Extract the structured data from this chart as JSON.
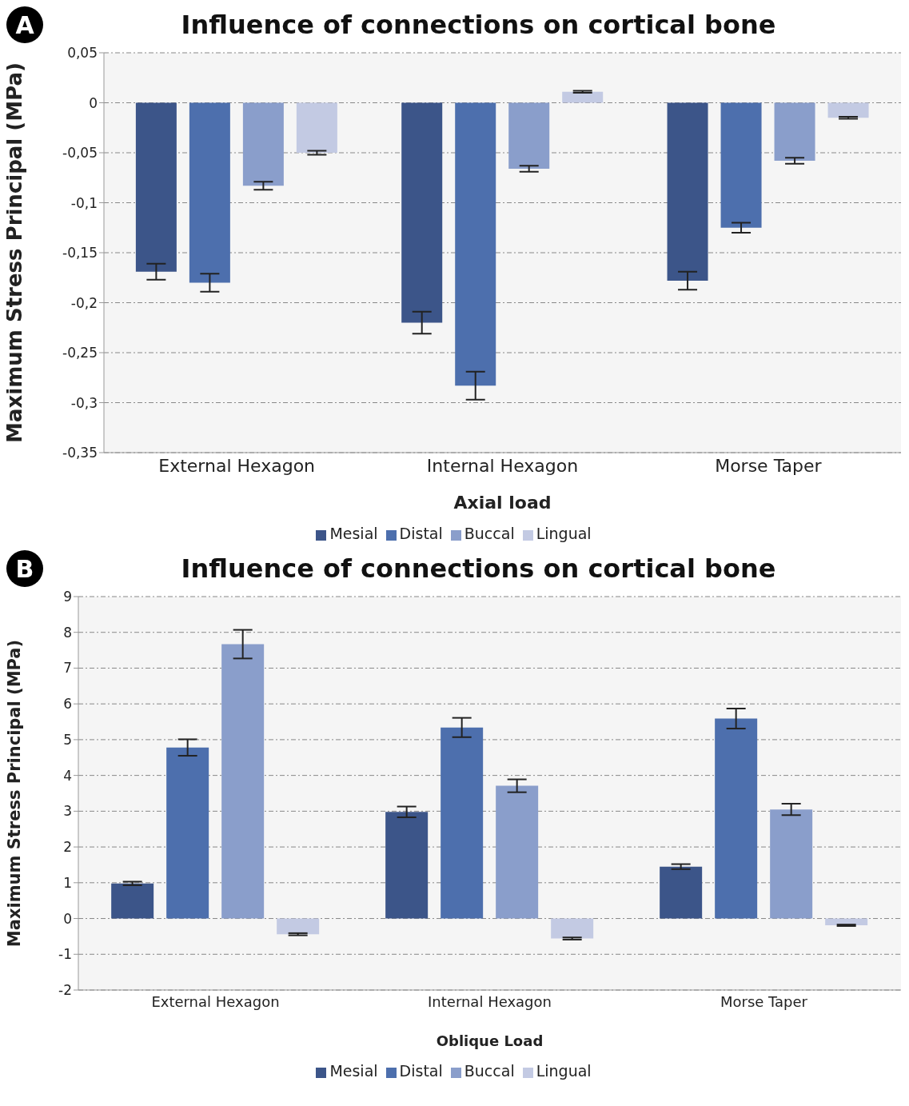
{
  "chart_data": [
    {
      "type": "bar",
      "title": "Influence of connections on cortical bone",
      "xlabel": "Axial load",
      "ylabel": "Maximum Stress Principal (MPa)",
      "annotations": [
        "A"
      ],
      "categories": [
        "External Hexagon",
        "Internal Hexagon",
        "Morse Taper"
      ],
      "series": [
        {
          "name": "Mesial",
          "color": "#3c5589",
          "values": [
            -0.169,
            -0.22,
            -0.178
          ],
          "errors": [
            0.008,
            0.011,
            0.009
          ]
        },
        {
          "name": "Distal",
          "color": "#4d6fad",
          "values": [
            -0.18,
            -0.283,
            -0.125
          ],
          "errors": [
            0.009,
            0.014,
            0.005
          ]
        },
        {
          "name": "Buccal",
          "color": "#8a9ecb",
          "values": [
            -0.083,
            -0.066,
            -0.058
          ],
          "errors": [
            0.004,
            0.003,
            0.003
          ]
        },
        {
          "name": "Lingual",
          "color": "#c3cae3",
          "values": [
            -0.05,
            0.011,
            -0.015
          ],
          "errors": [
            0.002,
            0.001,
            0.001
          ]
        }
      ],
      "ylim": [
        -0.35,
        0.05
      ],
      "yticks": [
        {
          "value": -0.35,
          "label": "-0,35"
        },
        {
          "value": -0.3,
          "label": "-0,3"
        },
        {
          "value": -0.25,
          "label": "-0,25"
        },
        {
          "value": -0.2,
          "label": "-0,2"
        },
        {
          "value": -0.15,
          "label": "-0,15"
        },
        {
          "value": -0.1,
          "label": "-0,1"
        },
        {
          "value": -0.05,
          "label": "-0,05"
        },
        {
          "value": 0,
          "label": "0"
        },
        {
          "value": 0.05,
          "label": "0,05"
        }
      ],
      "grid": "y",
      "legend": "bottom"
    },
    {
      "type": "bar",
      "title": "Influence of connections on cortical bone",
      "xlabel": "Oblique Load",
      "ylabel": "Maximum Stress Principal (MPa)",
      "annotations": [
        "B"
      ],
      "categories": [
        "External Hexagon",
        "Internal Hexagon",
        "Morse Taper"
      ],
      "series": [
        {
          "name": "Mesial",
          "color": "#3c5589",
          "values": [
            0.98,
            2.98,
            1.45
          ],
          "errors": [
            0.05,
            0.15,
            0.07
          ]
        },
        {
          "name": "Distal",
          "color": "#4d6fad",
          "values": [
            4.78,
            5.34,
            5.59
          ],
          "errors": [
            0.23,
            0.27,
            0.28
          ]
        },
        {
          "name": "Buccal",
          "color": "#8a9ecb",
          "values": [
            7.67,
            3.71,
            3.05
          ],
          "errors": [
            0.4,
            0.18,
            0.16
          ]
        },
        {
          "name": "Lingual",
          "color": "#c3cae3",
          "values": [
            -0.44,
            -0.56,
            -0.19
          ],
          "errors": [
            0.03,
            0.03,
            0.02
          ]
        }
      ],
      "ylim": [
        -2,
        9
      ],
      "yticks": [
        -2,
        -1,
        0,
        1,
        2,
        3,
        4,
        5,
        6,
        7,
        8,
        9
      ],
      "grid": "y",
      "legend": "bottom"
    }
  ]
}
